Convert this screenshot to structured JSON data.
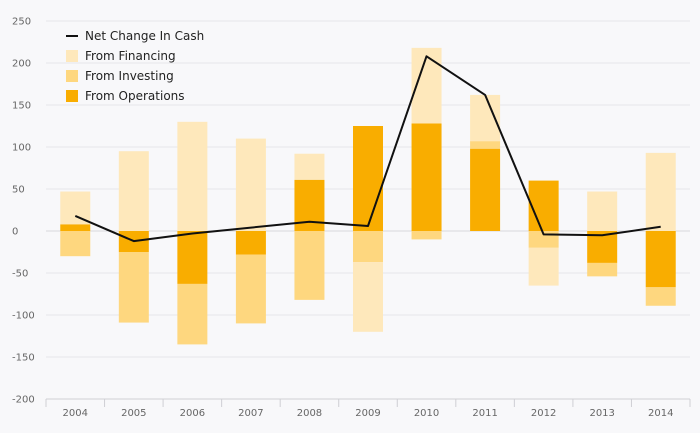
{
  "chart_data": {
    "type": "bar",
    "stacked": true,
    "categories": [
      "2004",
      "2005",
      "2006",
      "2007",
      "2008",
      "2009",
      "2010",
      "2011",
      "2012",
      "2013",
      "2014"
    ],
    "ylim": [
      -200,
      250
    ],
    "yticks": [
      -200,
      -150,
      -100,
      -50,
      0,
      50,
      100,
      150,
      200,
      250
    ],
    "grid": true,
    "legend_position": "top-left",
    "series": [
      {
        "name": "From Operations",
        "color": "#f9ad00",
        "values": [
          8,
          -25,
          -63,
          -28,
          61,
          125,
          128,
          98,
          60,
          -38,
          -67
        ]
      },
      {
        "name": "From Investing",
        "color": "#fed77f",
        "values": [
          -30,
          -84,
          -72,
          -82,
          -82,
          -37,
          -10,
          9,
          -20,
          -16,
          -22
        ]
      },
      {
        "name": "From Financing",
        "color": "#fee8bb",
        "values": [
          39,
          95,
          130,
          110,
          31,
          -83,
          90,
          55,
          -45,
          47,
          93
        ]
      }
    ],
    "line": {
      "name": "Net Change In Cash",
      "color": "#111111",
      "values": [
        18,
        -12,
        -3,
        4,
        11,
        6,
        208,
        162,
        -4,
        -5,
        5
      ]
    }
  }
}
